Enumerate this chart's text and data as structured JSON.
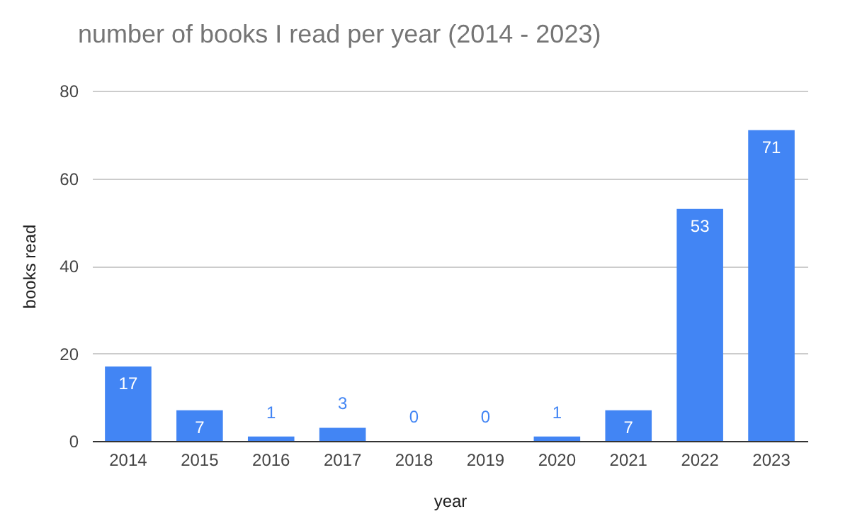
{
  "chart_data": {
    "type": "bar",
    "title": "number of books I read per year (2014 - 2023)",
    "xlabel": "year",
    "ylabel": "books read",
    "categories": [
      "2014",
      "2015",
      "2016",
      "2017",
      "2018",
      "2019",
      "2020",
      "2021",
      "2022",
      "2023"
    ],
    "values": [
      17,
      7,
      1,
      3,
      0,
      0,
      1,
      7,
      53,
      71
    ],
    "color": "#4285f4",
    "ylim": [
      0,
      80
    ],
    "yticks": [
      0,
      20,
      40,
      60,
      80
    ],
    "grid": "y",
    "data_labels": true
  }
}
